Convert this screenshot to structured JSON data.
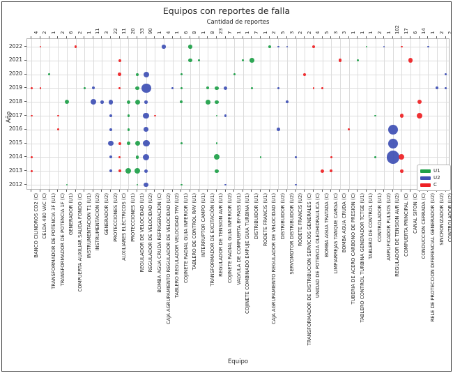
{
  "figure": {
    "title": "Equipos con reportes de falla",
    "subtitle": "Cantidad de reportes",
    "x_axis_label": "Equipo",
    "y_axis_label": "Año"
  },
  "colors": {
    "U1": "#1fa049",
    "U2": "#3f51b5",
    "C": "#ee2125"
  },
  "legend": [
    {
      "label": "U1"
    },
    {
      "label": "U2"
    },
    {
      "label": "C"
    }
  ],
  "chart_data": {
    "type": "scatter",
    "title": "Equipos con reportes de falla",
    "subtitle": "Cantidad de reportes",
    "xlabel": "Equipo",
    "ylabel": "Año",
    "legend_position": "lower right",
    "grid": true,
    "years": [
      2022,
      2021,
      2020,
      2019,
      2018,
      2017,
      2016,
      2015,
      2014,
      2013,
      2012
    ],
    "columns": [
      {
        "label": "BANCO CILINDROS CO2 (C)",
        "unit": "C",
        "total": 4,
        "reports": {
          "2019": 1,
          "2017": 1,
          "2014": 1,
          "2013": 1
        }
      },
      {
        "label": "CELDA 480 VAC (C)",
        "unit": "C",
        "total": 2,
        "reports": {
          "2022": 1,
          "2019": 1
        }
      },
      {
        "label": "TRANSFORMADOR DE POTENCIA 3F (U1)",
        "unit": "U1",
        "total": 1,
        "reports": {
          "2020": 1
        }
      },
      {
        "label": "TRANSFORMADOR DE POTENCIA 1F (C)",
        "unit": "C",
        "total": 2,
        "reports": {
          "2017": 1,
          "2016": 1
        }
      },
      {
        "label": "GENERADOR (U1)",
        "unit": "U1",
        "total": 6,
        "reports": {
          "2018": 5,
          "2012": 1
        }
      },
      {
        "label": "COMPUERTA AUXILIAR SALIDA FONDO (C)",
        "unit": "C",
        "total": 2,
        "reports": {
          "2022": 2
        }
      },
      {
        "label": "INSTRUMENTACION T1 (U1)",
        "unit": "U1",
        "total": 1,
        "reports": {
          "2019": 1
        }
      },
      {
        "label": "INSTRUMENTACION (U2)",
        "unit": "U2",
        "total": 11,
        "reports": {
          "2019": 2,
          "2018": 9
        }
      },
      {
        "label": "GENERADOR (U2)",
        "unit": "U2",
        "total": 3,
        "reports": {
          "2018": 3
        }
      },
      {
        "label": "PROTECCIONES (U2)",
        "unit": "U2",
        "total": 22,
        "reports": {
          "2018": 6,
          "2017": 2,
          "2016": 2,
          "2015": 8,
          "2014": 2,
          "2013": 2
        }
      },
      {
        "label": "AUXILIARES ELÉCTRICOS (C)",
        "unit": "C",
        "total": 11,
        "reports": {
          "2021": 2,
          "2020": 3,
          "2019": 1,
          "2015": 2,
          "2014": 1,
          "2013": 2
        }
      },
      {
        "label": "PROTECCIONES (U1)",
        "unit": "U1",
        "total": 20,
        "reports": {
          "2018": 4,
          "2017": 2,
          "2016": 2,
          "2015": 3,
          "2013": 9
        }
      },
      {
        "label": "REGULADOR DE VELOCIDAD (U1)",
        "unit": "U1",
        "total": 33,
        "reports": {
          "2020": 2,
          "2019": 4,
          "2018": 7,
          "2015": 7,
          "2014": 3,
          "2013": 9,
          "2012": 1
        }
      },
      {
        "label": "REGULADOR DE VELOCIDAD (U2)",
        "unit": "U2",
        "total": 90,
        "reports": {
          "2020": 9,
          "2019": 26,
          "2018": 3,
          "2017": 11,
          "2016": 6,
          "2015": 13,
          "2014": 12,
          "2013": 4,
          "2012": 6
        }
      },
      {
        "label": "BOMBA AGUA CRUDA REFRIGERACION (C)",
        "unit": "C",
        "total": 1,
        "reports": {
          "2017": 1
        }
      },
      {
        "label": "CAJA AGRUPAMIENTO REGULADOR DE VELOCIDAD (U2)",
        "unit": "U2",
        "total": 4,
        "reports": {
          "2022": 4
        }
      },
      {
        "label": "TABLERO REGULADOR VELOCIDAD TRV (U2)",
        "unit": "U2",
        "total": 1,
        "reports": {
          "2019": 1
        }
      },
      {
        "label": "COJINETE RADIAL GUIA INFERIOR (U1)",
        "unit": "U1",
        "total": 6,
        "reports": {
          "2020": 1,
          "2019": 1,
          "2018": 2,
          "2015": 1,
          "2012": 1
        }
      },
      {
        "label": "TABLERO DE CONTROL RAV (U1)",
        "unit": "U1",
        "total": 8,
        "reports": {
          "2022": 4,
          "2021": 4
        }
      },
      {
        "label": "INTERRUPTOR CAMPO (U1)",
        "unit": "U1",
        "total": 1,
        "reports": {
          "2021": 1
        }
      },
      {
        "label": "TRANSFORMADOR DE EXCITACIÓN (U1)",
        "unit": "U1",
        "total": 8,
        "reports": {
          "2019": 2,
          "2018": 6
        }
      },
      {
        "label": "REGULADOR DE TENSION AVR (U1)",
        "unit": "U1",
        "total": 23,
        "reports": {
          "2019": 4,
          "2018": 4,
          "2017": 1,
          "2015": 1,
          "2014": 9,
          "2013": 4
        }
      },
      {
        "label": "COJINETE RADIAL GUIA INFERIOR (U2)",
        "unit": "U2",
        "total": 7,
        "reports": {
          "2019": 4,
          "2017": 2,
          "2012": 1
        }
      },
      {
        "label": "VALVULA DE COMPUERTA BY-PASS (U1)",
        "unit": "U1",
        "total": 1,
        "reports": {
          "2020": 1
        }
      },
      {
        "label": "COJINETE COMBINADO EMPUJE GUIA TURBINA (U1)",
        "unit": "U1",
        "total": 1,
        "reports": {
          "2021": 1
        }
      },
      {
        "label": "DISTRIBUIDOR (U1)",
        "unit": "U1",
        "total": 7,
        "reports": {
          "2021": 6,
          "2019": 1
        }
      },
      {
        "label": "RODETE FRANCIS (U1)",
        "unit": "U1",
        "total": 1,
        "reports": {
          "2014": 1
        }
      },
      {
        "label": "CAJA AGRUPAMIENTO REGULADOR DE VELOCIDAD (U1)",
        "unit": "U1",
        "total": 2,
        "reports": {
          "2022": 2
        }
      },
      {
        "label": "DISTRIBUIDOR (U2)",
        "unit": "U2",
        "total": 5,
        "reports": {
          "2022": 1,
          "2019": 1,
          "2016": 3
        }
      },
      {
        "label": "SERVOMOTOR DISTRIBUIDOR (U2)",
        "unit": "U2",
        "total": 3,
        "reports": {
          "2022": 1,
          "2018": 2
        }
      },
      {
        "label": "RODETE FRANCIS (U2)",
        "unit": "U2",
        "total": 2,
        "reports": {
          "2014": 1,
          "2012": 1
        }
      },
      {
        "label": "TRANSFORMADOR DE DISTRIBUCION SERVICIOS GENERALES (C)",
        "unit": "C",
        "total": 2,
        "reports": {
          "2020": 2
        }
      },
      {
        "label": "UNIDAD DE POTENCIA OLEOHIDRAULICA (C)",
        "unit": "C",
        "total": 4,
        "reports": {
          "2022": 3,
          "2019": 1
        }
      },
      {
        "label": "BOMBA AGUA TRATADA (C)",
        "unit": "C",
        "total": 5,
        "reports": {
          "2019": 1,
          "2013": 4
        }
      },
      {
        "label": "LIMPIARREJAS TANQUE CARGA (C)",
        "unit": "C",
        "total": 3,
        "reports": {
          "2014": 1,
          "2013": 2
        }
      },
      {
        "label": "BOMBA AGUA CRUDA (C)",
        "unit": "C",
        "total": 3,
        "reports": {
          "2021": 3
        }
      },
      {
        "label": "TUBERIA DE ACERO CARBONO DE PRESION (C)",
        "unit": "C",
        "total": 1,
        "reports": {
          "2016": 1
        }
      },
      {
        "label": "TABLERO CONTROL TURBINA GENERADOR TCTGE (U1)",
        "unit": "U1",
        "total": 1,
        "reports": {
          "2021": 1
        }
      },
      {
        "label": "TABLERO DE CONTROL (U1)",
        "unit": "U1",
        "total": 1,
        "reports": {
          "2022": 1
        }
      },
      {
        "label": "CONTROLADOR (U1)",
        "unit": "U1",
        "total": 2,
        "reports": {
          "2017": 1,
          "2014": 1
        }
      },
      {
        "label": "AMPLIFICADOR PULSOS (U2)",
        "unit": "U2",
        "total": 1,
        "reports": {
          "2022": 1
        }
      },
      {
        "label": "REGULADOR DE TENSION AVR (U2)",
        "unit": "U2",
        "total": 102,
        "reports": {
          "2016": 28,
          "2015": 27,
          "2014": 47
        }
      },
      {
        "label": "COMPUERTA PRINCIPAL (C)",
        "unit": "C",
        "total": 17,
        "reports": {
          "2022": 1,
          "2017": 4,
          "2014": 9,
          "2013": 3
        }
      },
      {
        "label": "CANAL SIFON (C)",
        "unit": "C",
        "total": 6,
        "reports": {
          "2021": 6
        }
      },
      {
        "label": "CONDUCCION CERRADA (C)",
        "unit": "C",
        "total": 14,
        "reports": {
          "2018": 5,
          "2017": 9
        }
      },
      {
        "label": "RELE DE PROTECCION DIFERENCIAL GENERADOR (U2)",
        "unit": "U2",
        "total": 1,
        "reports": {
          "2022": 1
        }
      },
      {
        "label": "SINCRONIZADOR (U2)",
        "unit": "U2",
        "total": 2,
        "reports": {
          "2019": 2
        }
      },
      {
        "label": "CONTROLADOR (U2)",
        "unit": "U2",
        "total": 2,
        "reports": {
          "2020": 1,
          "2019": 1
        }
      }
    ]
  }
}
